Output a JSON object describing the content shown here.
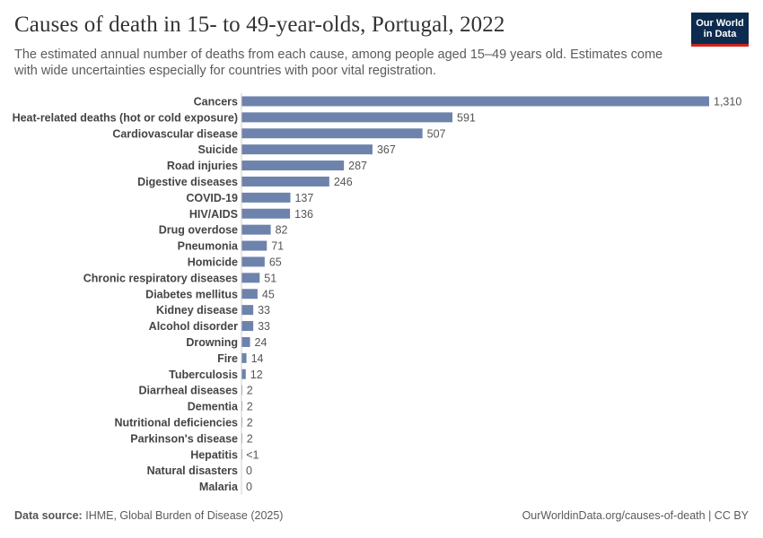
{
  "title": "Causes of death in 15- to 49-year-olds, Portugal, 2022",
  "subtitle": "The estimated annual number of deaths from each cause, among people aged 15–49 years old. Estimates come with wide uncertainties especially for countries with poor vital registration.",
  "logo": {
    "line1": "Our World",
    "line2": "in Data"
  },
  "footer": {
    "source_label": "Data source:",
    "source": "IHME, Global Burden of Disease (2025)",
    "url": "OurWorldinData.org/causes-of-death | CC BY"
  },
  "colors": {
    "bar": "#6d83ab",
    "text": "#333333",
    "muted": "#5b5b5b",
    "logo_bg": "#0d2b4e",
    "logo_accent": "#ce261e"
  },
  "chart_data": {
    "type": "bar",
    "orientation": "horizontal",
    "categories": [
      "Cancers",
      "Heat-related deaths (hot or cold exposure)",
      "Cardiovascular disease",
      "Suicide",
      "Road injuries",
      "Digestive diseases",
      "COVID-19",
      "HIV/AIDS",
      "Drug overdose",
      "Pneumonia",
      "Homicide",
      "Chronic respiratory diseases",
      "Diabetes mellitus",
      "Kidney disease",
      "Alcohol disorder",
      "Drowning",
      "Fire",
      "Tuberculosis",
      "Diarrheal diseases",
      "Dementia",
      "Nutritional deficiencies",
      "Parkinson's disease",
      "Hepatitis",
      "Natural disasters",
      "Malaria"
    ],
    "values": [
      1310,
      591,
      507,
      367,
      287,
      246,
      137,
      136,
      82,
      71,
      65,
      51,
      45,
      33,
      33,
      24,
      14,
      12,
      2,
      2,
      2,
      2,
      0.5,
      0,
      0
    ],
    "value_labels": [
      "1,310",
      "591",
      "507",
      "367",
      "287",
      "246",
      "137",
      "136",
      "82",
      "71",
      "65",
      "51",
      "45",
      "33",
      "33",
      "24",
      "14",
      "12",
      "2",
      "2",
      "2",
      "2",
      "<1",
      "0",
      "0"
    ],
    "xlim": [
      0,
      1310
    ],
    "grid": false,
    "legend": "none"
  }
}
